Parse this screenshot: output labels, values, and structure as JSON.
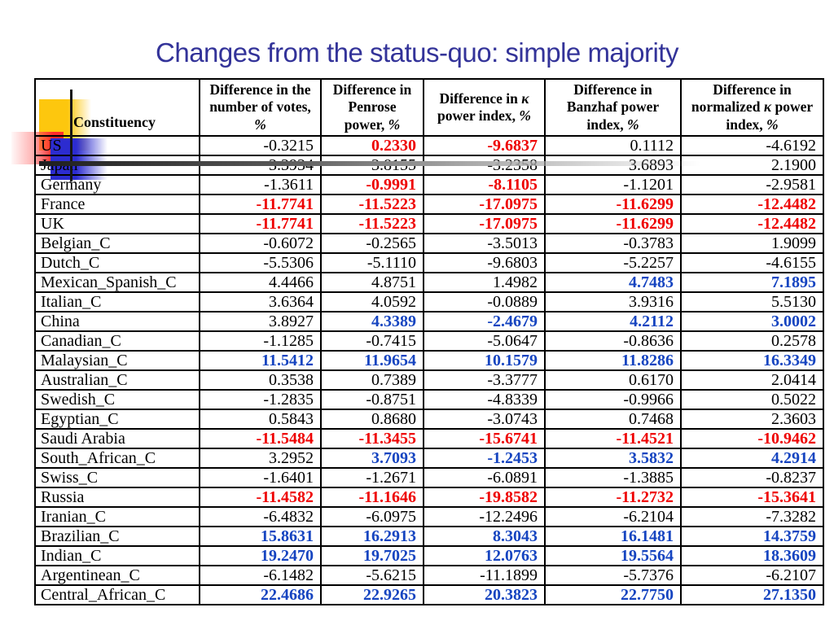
{
  "slide": {
    "title": "Changes from the status-quo: simple majority"
  },
  "colors": {
    "title": "#333399",
    "default_text": "#000000",
    "red_value": "#ee0000",
    "blue_value": "#1544c0",
    "decor_yellow": "#fdc70e",
    "decor_red": "#ff2b2b",
    "decor_blue": "#2c2cd0"
  },
  "table": {
    "columns": [
      "Constituency",
      "Difference in the number of votes, %",
      "Difference in Penrose power, %",
      "Difference in κ power index, %",
      "Difference in Banzhaf power index, %",
      "Difference in normalized κ power index, %"
    ],
    "rows": [
      {
        "name": "US",
        "values": [
          "-0.3215",
          "0.2330",
          "-9.6837",
          "0.1112",
          "-4.6192"
        ],
        "styles": [
          "black",
          "red",
          "red",
          "black",
          "black"
        ]
      },
      {
        "name": "Japan",
        "values": [
          "3.3934",
          "3.8155",
          "-3.2358",
          "3.6893",
          "2.1900"
        ],
        "styles": [
          "black",
          "black",
          "black",
          "black",
          "black"
        ]
      },
      {
        "name": "Germany",
        "values": [
          "-1.3611",
          "-0.9991",
          "-8.1105",
          "-1.1201",
          "-2.9581"
        ],
        "styles": [
          "black",
          "red",
          "red",
          "black",
          "black"
        ]
      },
      {
        "name": "France",
        "values": [
          "-11.7741",
          "-11.5223",
          "-17.0975",
          "-11.6299",
          "-12.4482"
        ],
        "styles": [
          "red",
          "red",
          "red",
          "red",
          "red"
        ]
      },
      {
        "name": "UK",
        "values": [
          "-11.7741",
          "-11.5223",
          "-17.0975",
          "-11.6299",
          "-12.4482"
        ],
        "styles": [
          "red",
          "red",
          "red",
          "red",
          "red"
        ]
      },
      {
        "name": "Belgian_C",
        "values": [
          "-0.6072",
          "-0.2565",
          "-3.5013",
          "-0.3783",
          "1.9099"
        ],
        "styles": [
          "black",
          "black",
          "black",
          "black",
          "black"
        ]
      },
      {
        "name": "Dutch_C",
        "values": [
          "-5.5306",
          "-5.1110",
          "-9.6803",
          "-5.2257",
          "-4.6155"
        ],
        "styles": [
          "black",
          "black",
          "black",
          "black",
          "black"
        ]
      },
      {
        "name": "Mexican_Spanish_C",
        "values": [
          "4.4466",
          "4.8751",
          "1.4982",
          "4.7483",
          "7.1895"
        ],
        "styles": [
          "black",
          "black",
          "black",
          "blue",
          "blue"
        ]
      },
      {
        "name": "Italian_C",
        "values": [
          "3.6364",
          "4.0592",
          "-0.0889",
          "3.9316",
          "5.5130"
        ],
        "styles": [
          "black",
          "black",
          "black",
          "black",
          "black"
        ]
      },
      {
        "name": "China",
        "values": [
          "3.8927",
          "4.3389",
          "-2.4679",
          "4.2112",
          "3.0002"
        ],
        "styles": [
          "black",
          "blue",
          "blue",
          "blue",
          "blue"
        ]
      },
      {
        "name": "Canadian_C",
        "values": [
          "-1.1285",
          "-0.7415",
          "-5.0647",
          "-0.8636",
          "0.2578"
        ],
        "styles": [
          "black",
          "black",
          "black",
          "black",
          "black"
        ]
      },
      {
        "name": "Malaysian_C",
        "values": [
          "11.5412",
          "11.9654",
          "10.1579",
          "11.8286",
          "16.3349"
        ],
        "styles": [
          "blue",
          "blue",
          "blue",
          "blue",
          "blue"
        ]
      },
      {
        "name": "Australian_C",
        "values": [
          "0.3538",
          "0.7389",
          "-3.3777",
          "0.6170",
          "2.0414"
        ],
        "styles": [
          "black",
          "black",
          "black",
          "black",
          "black"
        ]
      },
      {
        "name": "Swedish_C",
        "values": [
          "-1.2835",
          "-0.8751",
          "-4.8339",
          "-0.9966",
          "0.5022"
        ],
        "styles": [
          "black",
          "black",
          "black",
          "black",
          "black"
        ]
      },
      {
        "name": "Egyptian_C",
        "values": [
          "0.5843",
          "0.8680",
          "-3.0743",
          "0.7468",
          "2.3603"
        ],
        "styles": [
          "black",
          "black",
          "black",
          "black",
          "black"
        ]
      },
      {
        "name": "Saudi Arabia",
        "values": [
          "-11.5484",
          "-11.3455",
          "-15.6741",
          "-11.4521",
          "-10.9462"
        ],
        "styles": [
          "red",
          "red",
          "red",
          "red",
          "red"
        ]
      },
      {
        "name": "South_African_C",
        "values": [
          "3.2952",
          "3.7093",
          "-1.2453",
          "3.5832",
          "4.2914"
        ],
        "styles": [
          "black",
          "blue",
          "blue",
          "blue",
          "blue"
        ]
      },
      {
        "name": "Swiss_C",
        "values": [
          "-1.6401",
          "-1.2671",
          "-6.0891",
          "-1.3885",
          "-0.8237"
        ],
        "styles": [
          "black",
          "black",
          "black",
          "black",
          "black"
        ]
      },
      {
        "name": "Russia",
        "values": [
          "-11.4582",
          "-11.1646",
          "-19.8582",
          "-11.2732",
          "-15.3641"
        ],
        "styles": [
          "red",
          "red",
          "red",
          "red",
          "red"
        ]
      },
      {
        "name": "Iranian_C",
        "values": [
          "-6.4832",
          "-6.0975",
          "-12.2496",
          "-6.2104",
          "-7.3282"
        ],
        "styles": [
          "black",
          "black",
          "black",
          "black",
          "black"
        ]
      },
      {
        "name": "Brazilian_C",
        "values": [
          "15.8631",
          "16.2913",
          "8.3043",
          "16.1481",
          "14.3759"
        ],
        "styles": [
          "blue",
          "blue",
          "blue",
          "blue",
          "blue"
        ]
      },
      {
        "name": "Indian_C",
        "values": [
          "19.2470",
          "19.7025",
          "12.0763",
          "19.5564",
          "18.3609"
        ],
        "styles": [
          "blue",
          "blue",
          "blue",
          "blue",
          "blue"
        ]
      },
      {
        "name": "Argentinean_C",
        "values": [
          "-6.1482",
          "-5.6215",
          "-11.1899",
          "-5.7376",
          "-6.2107"
        ],
        "styles": [
          "black",
          "black",
          "black",
          "black",
          "black"
        ]
      },
      {
        "name": "Central_African_C",
        "values": [
          "22.4686",
          "22.9265",
          "20.3823",
          "22.7750",
          "27.1350"
        ],
        "styles": [
          "blue",
          "blue",
          "blue",
          "blue",
          "blue"
        ]
      }
    ]
  }
}
